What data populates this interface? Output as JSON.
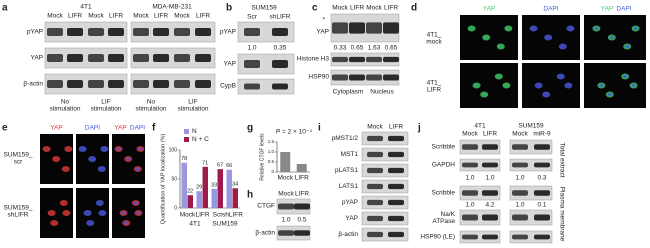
{
  "panels": {
    "a": {
      "label": "a",
      "cell_lines": [
        "4T1",
        "MDA-MB-231"
      ],
      "lanes": [
        "Mock",
        "LIFR",
        "Mock",
        "LIFR",
        "Mock",
        "LIFR",
        "Mock",
        "LIFR"
      ],
      "blots": [
        "pYAP",
        "YAP",
        "β-actin"
      ],
      "conditions": [
        [
          "No",
          "stimulation"
        ],
        [
          "LIF",
          "stimulation"
        ],
        [
          "No",
          "stimulation"
        ],
        [
          "LIF",
          "stimulation"
        ]
      ]
    },
    "b": {
      "label": "b",
      "title": "SUM159",
      "lanes": [
        "Scr",
        "shLIFR"
      ],
      "blots": [
        "pYAP",
        "YAP",
        "CypB"
      ],
      "quant": [
        "1.0",
        "0.35"
      ]
    },
    "c": {
      "label": "c",
      "lanes": [
        "Mock",
        "LIFR",
        "Mock",
        "LIFR"
      ],
      "marker": "*",
      "blots": [
        "YAP",
        "Histone H3",
        "HSP90"
      ],
      "quant": [
        "0.33",
        "0.65",
        "1.63",
        "0.65"
      ],
      "fractions": [
        "Cytoplasm",
        "Nucleus"
      ]
    },
    "d": {
      "label": "d",
      "columns": [
        "YAP",
        "DAPI"
      ],
      "merge": [
        "YAP",
        "DAPI"
      ],
      "rows": [
        [
          "4T1_",
          "mock"
        ],
        [
          "4T1_",
          "LIFR"
        ]
      ]
    },
    "e": {
      "label": "e",
      "columns": [
        "YAP",
        "DAPI"
      ],
      "merge": [
        "YAP",
        "DAPI"
      ],
      "rows": [
        [
          "SUM159_",
          "scr"
        ],
        [
          "SUM159_",
          "shLIFR"
        ]
      ]
    },
    "f": {
      "label": "f",
      "type": "bar",
      "ylabel": "Quantification of YAP localization (%)",
      "categories": [
        "Mock",
        "LIFR",
        "Scr",
        "shLIFR"
      ],
      "groups": [
        "4T1",
        "SUM159"
      ],
      "series": [
        {
          "name": "N",
          "color": "#9a96e0",
          "values": [
            78,
            29,
            33,
            66
          ]
        },
        {
          "name": "N + C",
          "color": "#9c1c4e",
          "values": [
            22,
            71,
            67,
            34
          ]
        }
      ],
      "ylim": [
        0,
        100
      ],
      "yticks": [
        0,
        50,
        100
      ]
    },
    "g": {
      "label": "g",
      "type": "bar",
      "ylabel": "Relative CTGF levels",
      "annotation": "P = 2 × 10⁻⁴",
      "categories": [
        "Mock",
        "LIFR"
      ],
      "values": [
        1.0,
        0.4
      ],
      "color": "#888888",
      "ylim": [
        0,
        1.5
      ],
      "yticks": [
        0,
        {
          "value": 0.5,
          "label": "0.5"
        },
        {
          "value": 1,
          "label": "1.0"
        },
        {
          "value": 1.5,
          "label": "1.5"
        }
      ]
    },
    "h": {
      "label": "h",
      "lanes": [
        "Mock",
        "LIFR"
      ],
      "blots": [
        "CTGF",
        "β-actin"
      ],
      "quant": [
        "1.0",
        "0.5"
      ]
    },
    "i": {
      "label": "i",
      "lanes": [
        "Mock",
        "LIFR"
      ],
      "blots": [
        "pMST1/2",
        "MST1",
        "pLATS1",
        "LATS1",
        "pYAP",
        "YAP",
        "β-actin"
      ]
    },
    "j": {
      "label": "j",
      "cell_lines": [
        "4T1",
        "SUM159"
      ],
      "lanes": [
        "Mock",
        "LIFR",
        "Mock",
        "miR-9"
      ],
      "blots": [
        "Scribble",
        "GAPDH",
        "Scribble",
        [
          "Na/K",
          "ATPase"
        ],
        "HSP90 (LE)"
      ],
      "quant1": [
        "1.0",
        "1.0",
        "1.0",
        "0.3"
      ],
      "quant2": [
        "1.0",
        "4.2",
        "1.0",
        "0.1"
      ],
      "sides": [
        "Total extract",
        "Plasma membrane"
      ]
    }
  }
}
